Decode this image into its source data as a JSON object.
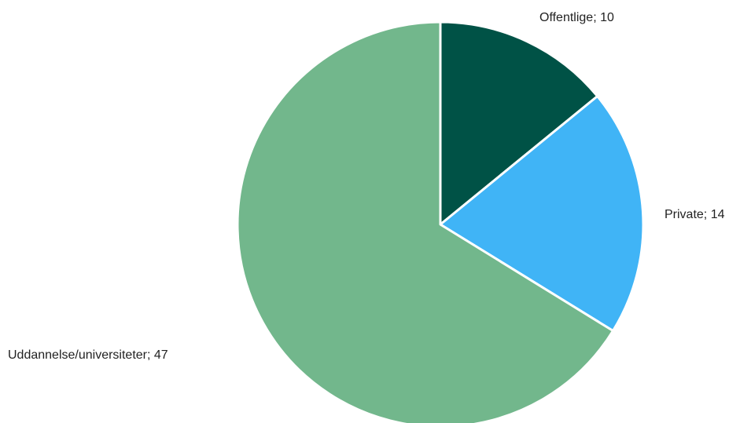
{
  "chart_data": {
    "type": "pie",
    "categories": [
      "Offentlige",
      "Private",
      "Uddannelse/universiteter"
    ],
    "values": [
      10,
      14,
      47
    ],
    "data_labels": [
      "Offentlige; 10",
      "Private; 14",
      "Uddannelse/universiteter; 47"
    ],
    "colors": [
      "#005246",
      "#40B4F6",
      "#72B78C"
    ],
    "start_angle_deg": 0,
    "direction": "clockwise",
    "legend": "none"
  }
}
